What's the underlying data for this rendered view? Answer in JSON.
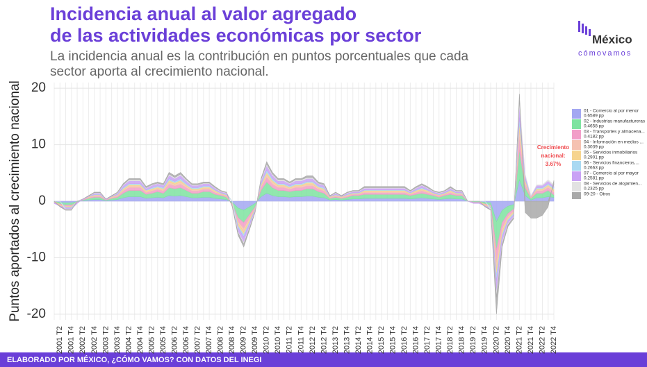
{
  "chart_data": {
    "type": "stacked_area",
    "title": [
      "Incidencia anual al valor agregado",
      "de las actividades económicas por sector"
    ],
    "subtitle": [
      "La incidencia anual es la contribución en puntos porcentuales que cada",
      "sector aporta al crecimiento nacional."
    ],
    "ylabel": "Puntos aportados al crecimiento nacional",
    "footer": "ELABORADO POR MÉXICO, ¿CÓMO VAMOS? CON DATOS DEL INEGI",
    "logo": {
      "top": "México",
      "bottom": "cómovamos"
    },
    "annotation": {
      "lines": [
        "Crecimiento",
        "nacional:",
        "3.67%"
      ],
      "color": "#f0484c"
    },
    "ylim": [
      -21,
      21
    ],
    "yticks": [
      -20,
      -10,
      0,
      10,
      20
    ],
    "grid": true,
    "categories": [
      null,
      "2001 T2",
      null,
      "2001 T4",
      null,
      "2002 T2",
      null,
      "2002 T4",
      null,
      "2003 T2",
      null,
      "2003 T4",
      null,
      "2004 T2",
      null,
      "2004 T4",
      null,
      "2005 T2",
      null,
      "2005 T4",
      null,
      "2006 T2",
      null,
      "2006 T4",
      null,
      "2007 T2",
      null,
      "2007 T4",
      null,
      "2008 T2",
      null,
      "2008 T4",
      null,
      "2009 T2",
      null,
      "2009 T4",
      null,
      "2010 T2",
      null,
      "2010 T4",
      null,
      "2011 T2",
      null,
      "2011 T4",
      null,
      "2012 T2",
      null,
      "2012 T4",
      null,
      "2013 T2",
      null,
      "2013 T4",
      null,
      "2014 T2",
      null,
      "2014 T4",
      null,
      "2015 T2",
      null,
      "2015 T4",
      null,
      "2016 T2",
      null,
      "2016 T4",
      null,
      "2017 T2",
      null,
      "2017 T4",
      null,
      "2018 T2",
      null,
      "2018 T4",
      null,
      "2019 T2",
      null,
      "2019 T4",
      null,
      "2020 T2",
      null,
      "2020 T4",
      null,
      "2021 T2",
      null,
      "2021 T4",
      null,
      "2022 T2",
      null,
      "2022 T4"
    ],
    "series": [
      {
        "name": "01 - Comercio al por menor",
        "legend_value": "0.6589 pp",
        "color": "#a3a7f2",
        "values": [
          -0.1,
          -0.2,
          -0.3,
          -0.3,
          -0.1,
          0.1,
          0.2,
          0.3,
          0.3,
          0.1,
          0.2,
          0.3,
          0.6,
          0.8,
          0.8,
          0.8,
          0.5,
          0.6,
          0.7,
          0.6,
          1,
          0.9,
          1,
          0.8,
          0.6,
          0.6,
          0.7,
          0.7,
          0.5,
          0.4,
          0.3,
          -0.2,
          -1.2,
          -1.6,
          -1,
          -0.4,
          0.8,
          1.4,
          1,
          0.8,
          0.8,
          0.7,
          0.8,
          0.8,
          0.9,
          0.9,
          0.7,
          0.6,
          0.2,
          0.3,
          0.2,
          0.3,
          0.4,
          0.4,
          0.5,
          0.5,
          0.5,
          0.5,
          0.5,
          0.5,
          0.5,
          0.5,
          0.4,
          0.5,
          0.6,
          0.5,
          0.4,
          0.3,
          0.4,
          0.5,
          0.4,
          0.4,
          0,
          -0.1,
          -0.1,
          -0.2,
          -0.3,
          -3.6,
          -1.6,
          -0.9,
          -0.6,
          3.8,
          1,
          0.2,
          0.6,
          0.6,
          0.8,
          0.6589
        ]
      },
      {
        "name": "02 - Industrias manufactureras",
        "legend_value": "0.4658 pp",
        "color": "#7ee3a0",
        "values": [
          -0.1,
          -0.3,
          -0.4,
          -0.4,
          -0.1,
          0.1,
          0.3,
          0.4,
          0.4,
          0.1,
          0.3,
          0.4,
          0.8,
          1.1,
          1.1,
          1.1,
          0.7,
          0.8,
          1,
          0.8,
          1.4,
          1.3,
          1.4,
          1.1,
          0.8,
          0.8,
          1,
          1,
          0.7,
          0.6,
          0.4,
          -0.3,
          -1.7,
          -2.2,
          -1.4,
          -0.6,
          1.1,
          2,
          1.4,
          1.1,
          1.1,
          1,
          1.1,
          1.1,
          1.3,
          1.3,
          1,
          0.8,
          0.3,
          0.4,
          0.3,
          0.4,
          0.6,
          0.6,
          0.7,
          0.7,
          0.7,
          0.7,
          0.7,
          0.7,
          0.7,
          0.7,
          0.6,
          0.7,
          0.8,
          0.7,
          0.6,
          0.4,
          0.6,
          0.7,
          0.6,
          0.6,
          0,
          -0.1,
          -0.1,
          -0.3,
          -0.4,
          -5,
          -2.2,
          -1.3,
          -0.8,
          5.3,
          1.4,
          0.3,
          0.8,
          0.8,
          1.1,
          0.4658
        ]
      },
      {
        "name": "03 - Transportes y almacena...",
        "legend_value": "0.4182 pp",
        "color": "#f29ec8",
        "values": [
          -0.1,
          -0.1,
          -0.2,
          -0.2,
          -0.1,
          0.1,
          0.1,
          0.2,
          0.2,
          0.1,
          0.1,
          0.2,
          0.4,
          0.5,
          0.5,
          0.5,
          0.3,
          0.4,
          0.4,
          0.4,
          0.6,
          0.5,
          0.6,
          0.5,
          0.4,
          0.4,
          0.4,
          0.4,
          0.3,
          0.2,
          0.2,
          -0.1,
          -0.7,
          -1,
          -0.6,
          -0.2,
          0.5,
          0.8,
          0.6,
          0.5,
          0.5,
          0.4,
          0.5,
          0.5,
          0.5,
          0.5,
          0.4,
          0.4,
          0.1,
          0.2,
          0.1,
          0.2,
          0.2,
          0.2,
          0.3,
          0.3,
          0.3,
          0.3,
          0.3,
          0.3,
          0.3,
          0.3,
          0.2,
          0.3,
          0.4,
          0.3,
          0.2,
          0.2,
          0.2,
          0.3,
          0.2,
          0.2,
          0,
          -0.1,
          -0.1,
          -0.1,
          -0.2,
          -2.2,
          -1,
          -0.5,
          -0.4,
          2.3,
          0.6,
          0.1,
          0.4,
          0.4,
          0.5,
          0.4182
        ]
      },
      {
        "name": "04 - Información en medios ...",
        "legend_value": "0.3039 pp",
        "color": "#f5c2b2",
        "values": [
          0,
          -0.1,
          -0.1,
          -0.1,
          0,
          0,
          0.1,
          0.1,
          0.1,
          0,
          0.1,
          0.1,
          0.2,
          0.3,
          0.3,
          0.3,
          0.2,
          0.2,
          0.2,
          0.2,
          0.4,
          0.3,
          0.4,
          0.3,
          0.2,
          0.2,
          0.2,
          0.2,
          0.2,
          0.1,
          0.1,
          -0.1,
          -0.4,
          -0.6,
          -0.4,
          -0.1,
          0.3,
          0.5,
          0.4,
          0.3,
          0.3,
          0.2,
          0.3,
          0.3,
          0.3,
          0.3,
          0.2,
          0.2,
          0.1,
          0.1,
          0.1,
          0.1,
          0.1,
          0.1,
          0.2,
          0.2,
          0.2,
          0.2,
          0.2,
          0.2,
          0.2,
          0.2,
          0.1,
          0.2,
          0.2,
          0.2,
          0.1,
          0.1,
          0.1,
          0.2,
          0.1,
          0.1,
          0,
          0,
          0,
          -0.1,
          -0.1,
          -1.3,
          -0.6,
          -0.3,
          -0.2,
          1.3,
          0.4,
          0.1,
          0.2,
          0.2,
          0.3,
          0.3039
        ]
      },
      {
        "name": "05 - Servicios inmobiliarios",
        "legend_value": "0.2901 pp",
        "color": "#f6d48e",
        "values": [
          0,
          -0.1,
          -0.1,
          -0.1,
          0,
          0,
          0.1,
          0.1,
          0.1,
          0,
          0.1,
          0.1,
          0.2,
          0.2,
          0.2,
          0.2,
          0.2,
          0.2,
          0.2,
          0.2,
          0.3,
          0.3,
          0.3,
          0.2,
          0.2,
          0.2,
          0.2,
          0.2,
          0.2,
          0.1,
          0.1,
          -0.1,
          -0.4,
          -0.5,
          -0.3,
          -0.1,
          0.2,
          0.4,
          0.3,
          0.2,
          0.2,
          0.2,
          0.2,
          0.2,
          0.3,
          0.3,
          0.2,
          0.2,
          0.1,
          0.1,
          0.1,
          0.1,
          0.1,
          0.1,
          0.2,
          0.2,
          0.2,
          0.2,
          0.2,
          0.2,
          0.2,
          0.2,
          0.1,
          0.2,
          0.2,
          0.2,
          0.1,
          0.1,
          0.1,
          0.2,
          0.1,
          0.1,
          0,
          0,
          0,
          -0.1,
          -0.1,
          -1.1,
          -0.5,
          -0.3,
          -0.2,
          1.1,
          0.3,
          0.1,
          0.2,
          0.2,
          0.2,
          0.2901
        ]
      },
      {
        "name": "06 - Servicios financieros,...",
        "legend_value": "0.2663 pp",
        "color": "#a9d9f2",
        "values": [
          0,
          0,
          -0.1,
          -0.1,
          0,
          0,
          0,
          0.1,
          0.1,
          0,
          0,
          0.1,
          0.2,
          0.2,
          0.2,
          0.2,
          0.1,
          0.2,
          0.2,
          0.2,
          0.3,
          0.2,
          0.3,
          0.2,
          0.2,
          0.2,
          0.2,
          0.2,
          0.1,
          0.1,
          0.1,
          0,
          -0.3,
          -0.4,
          -0.3,
          -0.1,
          0.2,
          0.4,
          0.3,
          0.2,
          0.2,
          0.2,
          0.2,
          0.2,
          0.2,
          0.2,
          0.2,
          0.2,
          0,
          0.1,
          0,
          0.1,
          0.1,
          0.1,
          0.1,
          0.1,
          0.1,
          0.1,
          0.1,
          0.1,
          0.1,
          0.1,
          0.1,
          0.1,
          0.2,
          0.1,
          0.1,
          0.1,
          0.1,
          0.1,
          0.1,
          0.1,
          0,
          0,
          0,
          0,
          -0.1,
          -0.9,
          -0.4,
          -0.2,
          -0.2,
          1,
          0.3,
          0,
          0.2,
          0.2,
          0.2,
          0.2663
        ]
      },
      {
        "name": "07 - Comercio al por mayor",
        "legend_value": "0.2581 pp",
        "color": "#c9a2f5",
        "values": [
          -0.1,
          -0.1,
          -0.2,
          -0.2,
          -0.1,
          0.1,
          0.1,
          0.2,
          0.2,
          0.1,
          0.1,
          0.2,
          0.4,
          0.5,
          0.5,
          0.5,
          0.3,
          0.4,
          0.4,
          0.4,
          0.6,
          0.5,
          0.6,
          0.5,
          0.4,
          0.4,
          0.4,
          0.4,
          0.3,
          0.2,
          0.2,
          -0.1,
          -0.7,
          -1,
          -0.6,
          -0.2,
          0.5,
          0.8,
          0.6,
          0.5,
          0.5,
          0.4,
          0.5,
          0.5,
          0.5,
          0.5,
          0.4,
          0.4,
          0.1,
          0.2,
          0.1,
          0.2,
          0.2,
          0.2,
          0.3,
          0.3,
          0.3,
          0.3,
          0.3,
          0.3,
          0.3,
          0.3,
          0.2,
          0.3,
          0.4,
          0.3,
          0.2,
          0.2,
          0.2,
          0.3,
          0.2,
          0.2,
          0,
          -0.1,
          -0.1,
          -0.1,
          -0.2,
          -2.2,
          -1,
          -0.5,
          -0.4,
          2.3,
          0.6,
          0.1,
          0.4,
          0.4,
          0.5,
          0.2581
        ]
      },
      {
        "name": "08 - Servicios de alojamien...",
        "legend_value": "0.2325 pp",
        "color": "#e2e2e2",
        "values": [
          0,
          0,
          -0.1,
          -0.1,
          0,
          0,
          0,
          0.1,
          0.1,
          0,
          0,
          0.1,
          0.1,
          0.2,
          0.2,
          0.2,
          0.1,
          0.1,
          0.1,
          0.1,
          0.2,
          0.2,
          0.2,
          0.2,
          0.1,
          0.1,
          0.1,
          0.1,
          0.1,
          0.1,
          0.1,
          0,
          -0.2,
          -0.3,
          -0.2,
          -0.1,
          0.2,
          0.3,
          0.2,
          0.2,
          0.2,
          0.1,
          0.2,
          0.2,
          0.2,
          0.2,
          0.1,
          0.1,
          0,
          0.1,
          0,
          0.1,
          0.1,
          0.1,
          0.1,
          0.1,
          0.1,
          0.1,
          0.1,
          0.1,
          0.1,
          0.1,
          0.1,
          0.1,
          0.1,
          0.1,
          0.1,
          0.1,
          0.1,
          0.1,
          0.1,
          0.1,
          0,
          0,
          0,
          0,
          -0.1,
          -0.7,
          -0.3,
          -0.2,
          -0.1,
          0.8,
          0.2,
          0,
          0.1,
          0.1,
          0.2,
          0.2325
        ]
      },
      {
        "name": "09-20 - Otros",
        "color": "#a9a9a9",
        "values": [
          0,
          -0.1,
          -0.1,
          -0.1,
          0,
          0,
          0.1,
          0.1,
          0.1,
          0,
          0.1,
          0.1,
          0.2,
          0.2,
          0.2,
          0.2,
          0.2,
          0.2,
          0.2,
          0.2,
          0.3,
          0.3,
          0.3,
          0.2,
          0.2,
          0.2,
          0.2,
          0.2,
          0.2,
          0.1,
          0.1,
          -0.1,
          -0.4,
          -0.5,
          -0.3,
          -0.1,
          0.2,
          0.4,
          0.3,
          0.2,
          0.2,
          0.2,
          0.2,
          0.2,
          0.3,
          0.3,
          0.2,
          0.2,
          0.1,
          0.1,
          0.1,
          0.1,
          0.1,
          0.1,
          0.2,
          0.2,
          0.2,
          0.2,
          0.2,
          0.2,
          0.2,
          0.2,
          0.1,
          0.2,
          0.2,
          0.2,
          0.1,
          0.1,
          0.1,
          0.2,
          0.1,
          0.1,
          0,
          0,
          0,
          -0.1,
          -0.1,
          -3,
          -0.5,
          -0.3,
          -0.2,
          1.1,
          -2,
          -3,
          -3,
          -2.5,
          -1,
          0.7762
        ]
      }
    ]
  }
}
